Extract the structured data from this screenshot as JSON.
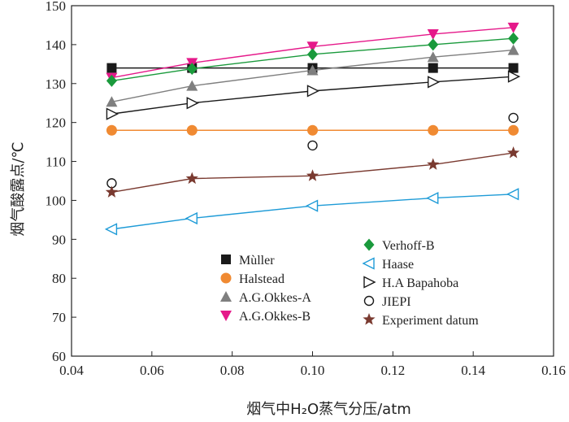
{
  "chart_data": {
    "type": "line",
    "xlabel": "烟气中H₂O蒸气分压/atm",
    "ylabel": "烟气酸露点/℃",
    "xlim": [
      0.04,
      0.16
    ],
    "ylim": [
      60,
      150
    ],
    "xticks": [
      "0.04",
      "0.06",
      "0.08",
      "0.10",
      "0.12",
      "0.14",
      "0.16"
    ],
    "yticks": [
      "60",
      "70",
      "80",
      "90",
      "100",
      "110",
      "120",
      "130",
      "140",
      "150"
    ],
    "grid": false,
    "legend_position": "bottom-center",
    "series": [
      {
        "name": "Mùller",
        "color": "#1a1a1a",
        "marker": "square",
        "line": true,
        "x": [
          0.05,
          0.07,
          0.1,
          0.13,
          0.15
        ],
        "y": [
          134,
          134,
          134,
          134,
          134
        ]
      },
      {
        "name": "Halstead",
        "color": "#f08a32",
        "marker": "circle",
        "line": true,
        "x": [
          0.05,
          0.07,
          0.1,
          0.13,
          0.15
        ],
        "y": [
          118,
          118,
          118,
          118,
          118
        ]
      },
      {
        "name": "A.G.Okkes-A",
        "color": "#7f7f7f",
        "marker": "triangle-up",
        "line": true,
        "x": [
          0.05,
          0.07,
          0.1,
          0.13,
          0.15
        ],
        "y": [
          125.3,
          129.4,
          133.4,
          136.8,
          138.6
        ]
      },
      {
        "name": "A.G.Okkes-B",
        "color": "#e5198a",
        "marker": "triangle-down",
        "line": true,
        "x": [
          0.05,
          0.07,
          0.1,
          0.13,
          0.15
        ],
        "y": [
          131.5,
          135.3,
          139.5,
          142.7,
          144.4
        ]
      },
      {
        "name": "Verhoff-B",
        "color": "#1a9a3c",
        "marker": "diamond",
        "line": true,
        "x": [
          0.05,
          0.07,
          0.1,
          0.13,
          0.15
        ],
        "y": [
          130.7,
          133.8,
          137.5,
          140.0,
          141.6
        ]
      },
      {
        "name": "Haase",
        "color": "#1e9bd7",
        "marker": "triangle-left-open",
        "line": true,
        "x": [
          0.05,
          0.07,
          0.1,
          0.13,
          0.15
        ],
        "y": [
          92.6,
          95.4,
          98.6,
          100.6,
          101.6
        ]
      },
      {
        "name": "H.A Bapahoba",
        "color": "#1a1a1a",
        "marker": "triangle-right-open",
        "line": true,
        "x": [
          0.05,
          0.07,
          0.1,
          0.13,
          0.15
        ],
        "y": [
          122.2,
          125.0,
          128.1,
          130.4,
          131.8
        ]
      },
      {
        "name": "JIEPI",
        "color": "#1a1a1a",
        "marker": "circle-open",
        "line": false,
        "x": [
          0.05,
          0.1,
          0.15
        ],
        "y": [
          104.4,
          114.1,
          121.2
        ]
      },
      {
        "name": "Experiment datum",
        "color": "#7a3a30",
        "marker": "star",
        "line": true,
        "x": [
          0.05,
          0.07,
          0.1,
          0.13,
          0.15
        ],
        "y": [
          102.1,
          105.6,
          106.3,
          109.2,
          112.2
        ]
      }
    ]
  }
}
